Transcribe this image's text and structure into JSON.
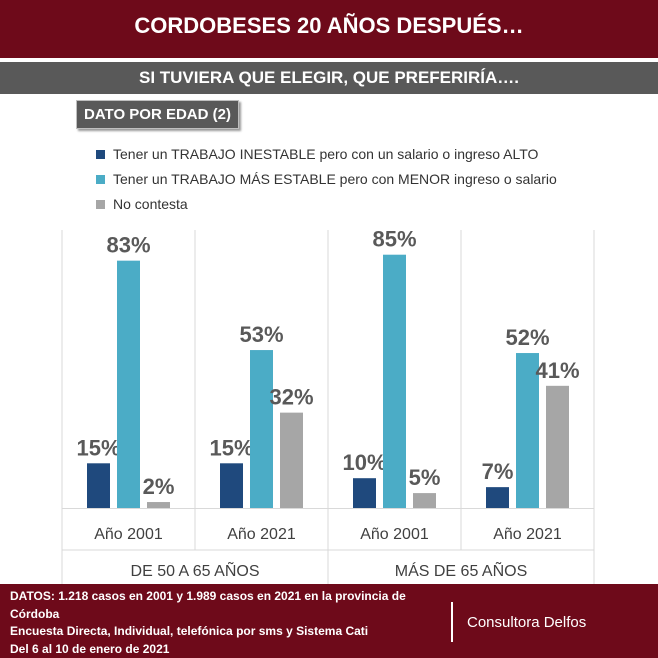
{
  "header": {
    "title": "CORDOBESES 20 AÑOS DESPUÉS…"
  },
  "subheader": {
    "title": "SI TUVIERA QUE ELEGIR, QUE PREFERIRÍA…."
  },
  "tag": {
    "label": "DATO POR EDAD (2)"
  },
  "chart_data": {
    "type": "bar",
    "title": "",
    "xlabel": "",
    "ylabel": "",
    "ylim": [
      0,
      100
    ],
    "grid": false,
    "legend_position": "top-left",
    "groups": [
      {
        "label": "DE 50 A 65 AÑOS",
        "categories": [
          "Año 2001",
          "Año 2021"
        ]
      },
      {
        "label": "MÁS DE 65 AÑOS",
        "categories": [
          "Año 2001",
          "Año 2021"
        ]
      }
    ],
    "categories": [
      "Año 2001",
      "Año 2021",
      "Año 2001",
      "Año 2021"
    ],
    "series": [
      {
        "name": "Tener un TRABAJO INESTABLE pero con un salario o ingreso ALTO",
        "color": "#1f497d",
        "values": [
          15,
          15,
          10,
          7
        ]
      },
      {
        "name": "Tener un  TRABAJO MÁS ESTABLE pero con MENOR ingreso o salario",
        "color": "#4bacc6",
        "values": [
          83,
          53,
          85,
          52
        ]
      },
      {
        "name": "No contesta",
        "color": "#a6a6a6",
        "values": [
          2,
          32,
          5,
          41
        ]
      }
    ],
    "value_suffix": "%"
  },
  "footer": {
    "lines": [
      "DATOS: 1.218  casos en 2001 y 1.989  casos en 2021  en la provincia de Córdoba",
      "Encuesta Directa, Individual, telefónica por sms y Sistema Cati",
      "Del 6 al 10  de enero de 2021"
    ],
    "brand": "Consultora Delfos"
  },
  "colors": {
    "header_bg": "#6e0a1a",
    "bar_bg": "#595959"
  }
}
